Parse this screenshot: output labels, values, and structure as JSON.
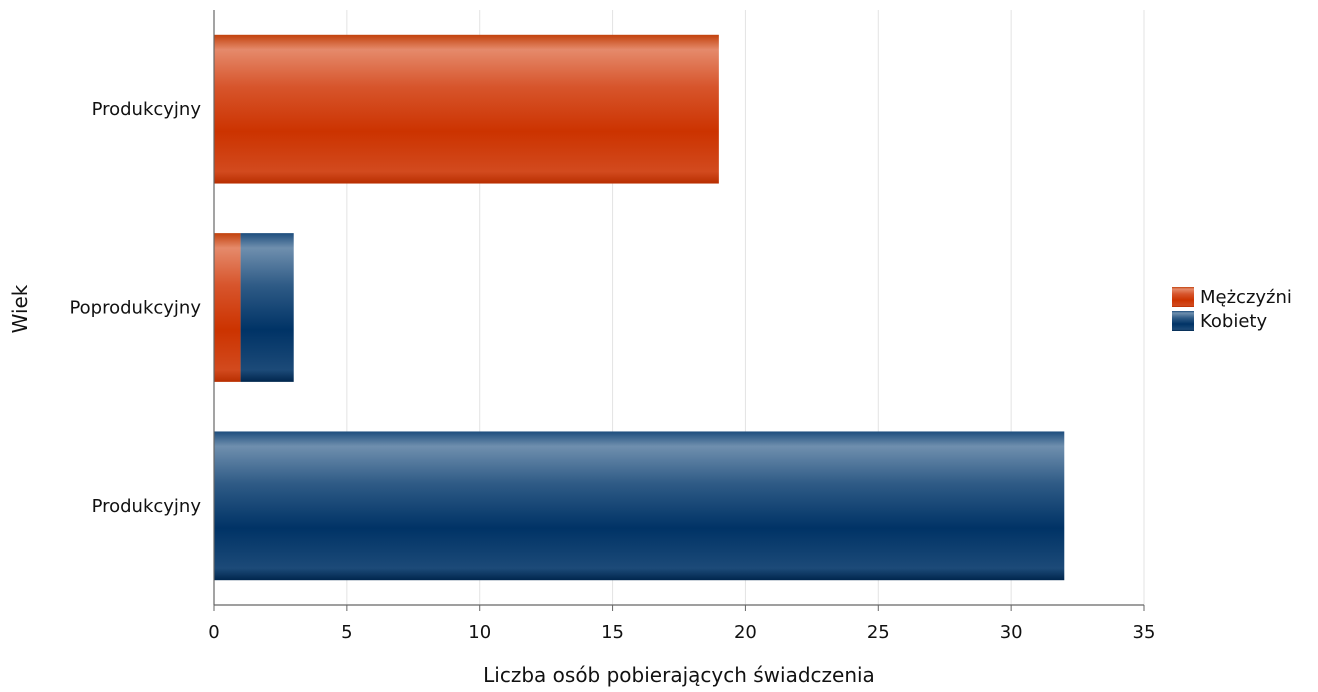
{
  "chart_data": {
    "type": "bar",
    "orientation": "horizontal",
    "stacked": true,
    "categories": [
      "Produkcyjny",
      "Poprodukcyjny",
      "Produkcyjny"
    ],
    "series": [
      {
        "name": "Mężczyźni",
        "color": "#cc3300",
        "values": [
          19,
          1,
          0
        ]
      },
      {
        "name": "Kobiety",
        "color": "#003366",
        "values": [
          0,
          2,
          32
        ]
      }
    ],
    "xlabel": "Liczba osób pobierających świadczenia",
    "ylabel": "Wiek",
    "xlim": [
      0,
      35
    ],
    "xticks": [
      0,
      5,
      10,
      15,
      20,
      25,
      30,
      35
    ],
    "grid": true,
    "legend": "right"
  }
}
